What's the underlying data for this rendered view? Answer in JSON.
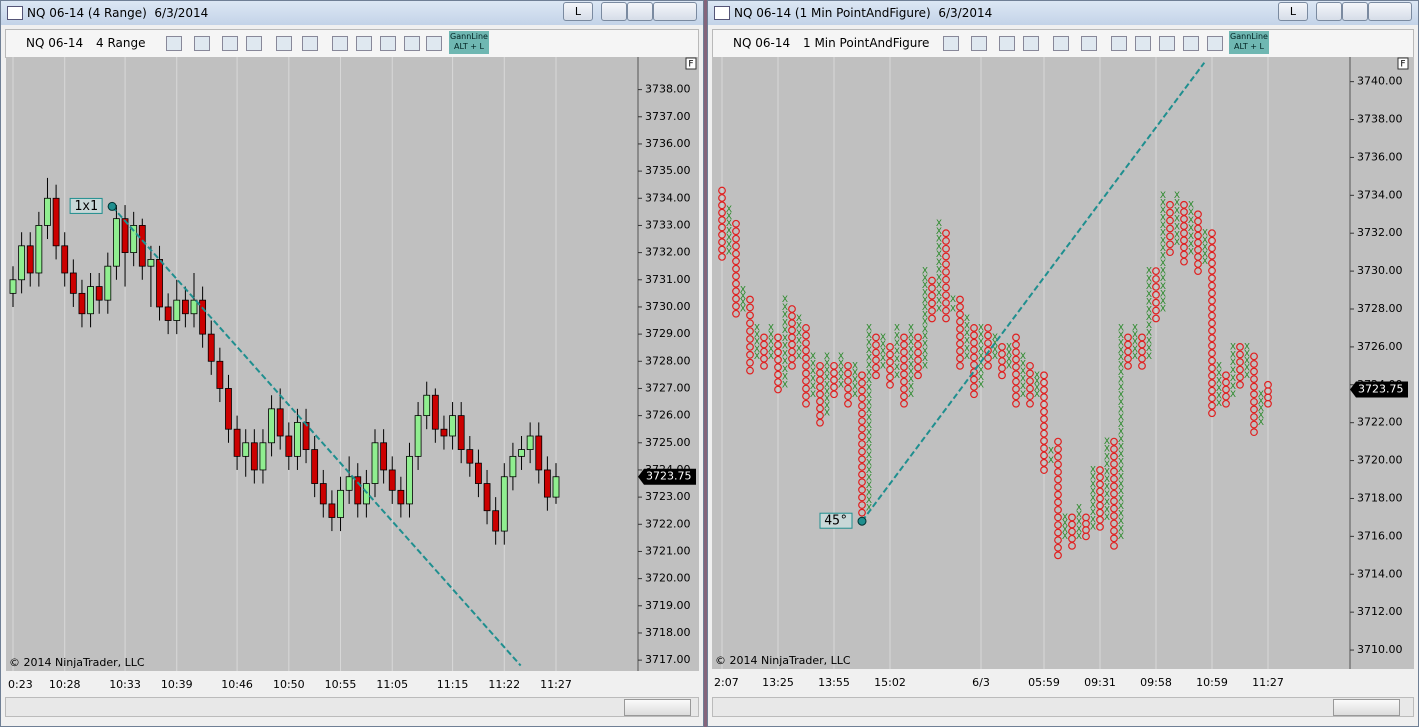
{
  "windows": [
    {
      "title": "NQ 06-14 (4 Range)  6/3/2014",
      "button": "L",
      "instrument": "NQ 06-14",
      "period": "4 Range",
      "gann_button": [
        "GannLine",
        "ALT + L"
      ],
      "axis_flag": "F",
      "copyright": "© 2014 NinjaTrader, LLC"
    },
    {
      "title": "NQ 06-14 (1 Min PointAndFigure)  6/3/2014",
      "button": "L",
      "instrument": "NQ 06-14",
      "period": "1 Min PointAndFigure",
      "gann_button": [
        "GannLine",
        "ALT + L"
      ],
      "axis_flag": "F",
      "copyright": "© 2014 NinjaTrader, LLC"
    }
  ],
  "chart_data": [
    {
      "type": "candlestick",
      "up_color": "#90ee90",
      "down_color": "#cc0000",
      "grid": true,
      "categories": [
        "0:23",
        null,
        null,
        null,
        null,
        null,
        "10:28",
        null,
        null,
        null,
        null,
        null,
        null,
        "10:33",
        null,
        null,
        null,
        null,
        null,
        "10:39",
        null,
        null,
        null,
        null,
        null,
        null,
        "10:46",
        null,
        null,
        null,
        null,
        null,
        "10:50",
        null,
        null,
        null,
        null,
        null,
        "10:55",
        null,
        null,
        null,
        null,
        null,
        "11:05",
        null,
        null,
        null,
        null,
        null,
        null,
        "11:15",
        null,
        null,
        null,
        null,
        null,
        "11:22",
        null,
        null,
        null,
        null,
        null,
        "11:27"
      ],
      "open": [
        3730.5,
        3731.0,
        3732.25,
        3731.25,
        3733.0,
        3734.0,
        3732.25,
        3731.25,
        3730.5,
        3729.75,
        3730.75,
        3730.25,
        3731.5,
        3733.25,
        3732.0,
        3733.0,
        3731.5,
        3731.75,
        3730.0,
        3729.5,
        3730.25,
        3729.75,
        3730.25,
        3729.0,
        3728.0,
        3727.0,
        3725.5,
        3724.5,
        3725.0,
        3724.0,
        3725.0,
        3726.25,
        3725.25,
        3724.5,
        3725.75,
        3724.75,
        3723.5,
        3722.75,
        3722.25,
        3723.25,
        3723.75,
        3722.75,
        3723.5,
        3725.0,
        3724.0,
        3723.25,
        3722.75,
        3724.5,
        3726.0,
        3726.75,
        3725.5,
        3725.25,
        3726.0,
        3724.75,
        3724.25,
        3723.5,
        3722.5,
        3721.75,
        3723.75,
        3724.5,
        3724.75,
        3725.25,
        3724.0,
        3723.0
      ],
      "high": [
        3731.5,
        3732.75,
        3732.75,
        3733.5,
        3734.75,
        3734.5,
        3732.75,
        3731.75,
        3731.0,
        3731.25,
        3731.25,
        3732.0,
        3733.75,
        3733.75,
        3733.5,
        3733.25,
        3732.25,
        3732.25,
        3730.5,
        3731.0,
        3730.75,
        3731.25,
        3730.75,
        3729.5,
        3728.5,
        3727.5,
        3726.0,
        3725.5,
        3725.5,
        3725.5,
        3726.75,
        3727.0,
        3725.75,
        3726.25,
        3726.25,
        3725.25,
        3724.0,
        3723.25,
        3723.75,
        3724.5,
        3724.25,
        3724.0,
        3725.5,
        3725.5,
        3724.5,
        3723.75,
        3725.0,
        3726.5,
        3727.25,
        3727.0,
        3726.0,
        3726.5,
        3726.5,
        3725.25,
        3724.75,
        3724.0,
        3723.0,
        3724.25,
        3725.0,
        3725.25,
        3725.75,
        3725.75,
        3724.5,
        3724.25
      ],
      "low": [
        3730.0,
        3730.5,
        3730.75,
        3730.75,
        3732.5,
        3731.75,
        3730.75,
        3730.0,
        3729.25,
        3729.25,
        3729.75,
        3729.75,
        3731.0,
        3730.75,
        3731.5,
        3731.0,
        3730.0,
        3729.5,
        3729.0,
        3729.0,
        3729.25,
        3729.25,
        3728.5,
        3727.5,
        3726.5,
        3725.0,
        3724.0,
        3723.75,
        3723.5,
        3723.5,
        3724.5,
        3724.75,
        3724.0,
        3724.0,
        3724.25,
        3723.0,
        3722.25,
        3721.75,
        3721.75,
        3722.75,
        3722.25,
        3722.25,
        3723.0,
        3723.5,
        3722.75,
        3722.25,
        3722.25,
        3724.0,
        3725.5,
        3725.0,
        3724.75,
        3724.75,
        3724.25,
        3723.75,
        3723.0,
        3722.0,
        3721.25,
        3721.25,
        3723.25,
        3724.0,
        3724.25,
        3723.5,
        3722.5,
        3722.75
      ],
      "close": [
        3731.0,
        3732.25,
        3731.25,
        3733.0,
        3734.0,
        3732.25,
        3731.25,
        3730.5,
        3729.75,
        3730.75,
        3730.25,
        3731.5,
        3733.25,
        3732.0,
        3733.0,
        3731.5,
        3731.75,
        3730.0,
        3729.5,
        3730.25,
        3729.75,
        3730.25,
        3729.0,
        3728.0,
        3727.0,
        3725.5,
        3724.5,
        3725.0,
        3724.0,
        3725.0,
        3726.25,
        3725.25,
        3724.5,
        3725.75,
        3724.75,
        3723.5,
        3722.75,
        3722.25,
        3723.25,
        3723.75,
        3722.75,
        3723.5,
        3725.0,
        3724.0,
        3723.25,
        3722.75,
        3724.5,
        3726.0,
        3726.75,
        3725.5,
        3725.25,
        3726.0,
        3724.75,
        3724.25,
        3723.5,
        3722.5,
        3721.75,
        3723.75,
        3724.5,
        3724.75,
        3725.25,
        3724.0,
        3723.0,
        3723.75
      ],
      "ylim": [
        3716.6,
        3739.2
      ],
      "yticks": [
        {
          "value": 3717,
          "label": "3717.00"
        },
        {
          "value": 3718,
          "label": "3718.00"
        },
        {
          "value": 3719,
          "label": "3719.00"
        },
        {
          "value": 3720,
          "label": "3720.00"
        },
        {
          "value": 3721,
          "label": "3721.00"
        },
        {
          "value": 3722,
          "label": "3722.00"
        },
        {
          "value": 3723,
          "label": "3723.00"
        },
        {
          "value": 3724,
          "label": "3724.00"
        },
        {
          "value": 3725,
          "label": "3725.00"
        },
        {
          "value": 3726,
          "label": "3726.00"
        },
        {
          "value": 3727,
          "label": "3727.00"
        },
        {
          "value": 3728,
          "label": "3728.00"
        },
        {
          "value": 3729,
          "label": "3729.00"
        },
        {
          "value": 3730,
          "label": "3730.00"
        },
        {
          "value": 3731,
          "label": "3731.00"
        },
        {
          "value": 3732,
          "label": "3732.00"
        },
        {
          "value": 3733,
          "label": "3733.00"
        },
        {
          "value": 3734,
          "label": "3734.00"
        },
        {
          "value": 3735,
          "label": "3735.00"
        },
        {
          "value": 3736,
          "label": "3736.00"
        },
        {
          "value": 3737,
          "label": "3737.00"
        },
        {
          "value": 3738,
          "label": "3738.00"
        }
      ],
      "last_price": 3723.75,
      "line": {
        "label": "1x1",
        "x": [
          11.5,
          58.9
        ],
        "y": [
          3733.7,
          3716.8
        ],
        "color": "#1f8f8f"
      }
    },
    {
      "type": "pointfigure",
      "x_color": "#2a8a2a",
      "o_color": "#e02020",
      "grid": true,
      "categories": [
        "2:07",
        null,
        null,
        null,
        null,
        null,
        null,
        null,
        "13:25",
        null,
        null,
        null,
        null,
        null,
        null,
        null,
        "13:55",
        null,
        null,
        null,
        null,
        null,
        null,
        null,
        "15:02",
        null,
        null,
        null,
        null,
        null,
        null,
        null,
        null,
        null,
        null,
        null,
        null,
        "6/3",
        null,
        null,
        null,
        null,
        null,
        null,
        null,
        null,
        "05:59",
        null,
        null,
        null,
        null,
        null,
        null,
        null,
        "09:31",
        null,
        null,
        null,
        null,
        null,
        null,
        null,
        "09:58",
        null,
        null,
        null,
        null,
        null,
        null,
        null,
        "10:59",
        null,
        null,
        null,
        null,
        null,
        null,
        null,
        "11:27"
      ],
      "columns": [
        {
          "kind": "O",
          "high": 3734.25,
          "low": 3730.75
        },
        {
          "kind": "X",
          "high": 3733.25,
          "low": 3731.0
        },
        {
          "kind": "O",
          "high": 3732.5,
          "low": 3727.75
        },
        {
          "kind": "X",
          "high": 3729.0,
          "low": 3728.0
        },
        {
          "kind": "O",
          "high": 3728.5,
          "low": 3724.75
        },
        {
          "kind": "X",
          "high": 3727.0,
          "low": 3725.5
        },
        {
          "kind": "O",
          "high": 3726.5,
          "low": 3725.0
        },
        {
          "kind": "X",
          "high": 3727.0,
          "low": 3725.5
        },
        {
          "kind": "O",
          "high": 3726.5,
          "low": 3723.75
        },
        {
          "kind": "X",
          "high": 3728.5,
          "low": 3724.0
        },
        {
          "kind": "O",
          "high": 3728.0,
          "low": 3725.0
        },
        {
          "kind": "X",
          "high": 3727.5,
          "low": 3725.5
        },
        {
          "kind": "O",
          "high": 3727.0,
          "low": 3723.0
        },
        {
          "kind": "X",
          "high": 3725.5,
          "low": 3723.5
        },
        {
          "kind": "O",
          "high": 3725.0,
          "low": 3722.0
        },
        {
          "kind": "X",
          "high": 3725.5,
          "low": 3722.5
        },
        {
          "kind": "O",
          "high": 3725.0,
          "low": 3723.5
        },
        {
          "kind": "X",
          "high": 3725.5,
          "low": 3724.0
        },
        {
          "kind": "O",
          "high": 3725.0,
          "low": 3723.0
        },
        {
          "kind": "X",
          "high": 3725.0,
          "low": 3723.5
        },
        {
          "kind": "O",
          "high": 3724.5,
          "low": 3717.25
        },
        {
          "kind": "X",
          "high": 3727.0,
          "low": 3717.5
        },
        {
          "kind": "O",
          "high": 3726.5,
          "low": 3724.5
        },
        {
          "kind": "X",
          "high": 3726.5,
          "low": 3725.0
        },
        {
          "kind": "O",
          "high": 3726.0,
          "low": 3724.0
        },
        {
          "kind": "X",
          "high": 3727.0,
          "low": 3724.5
        },
        {
          "kind": "O",
          "high": 3726.5,
          "low": 3723.0
        },
        {
          "kind": "X",
          "high": 3727.0,
          "low": 3723.5
        },
        {
          "kind": "O",
          "high": 3726.5,
          "low": 3724.5
        },
        {
          "kind": "X",
          "high": 3730.0,
          "low": 3725.0
        },
        {
          "kind": "O",
          "high": 3729.5,
          "low": 3727.5
        },
        {
          "kind": "X",
          "high": 3732.5,
          "low": 3728.0
        },
        {
          "kind": "O",
          "high": 3732.0,
          "low": 3727.5
        },
        {
          "kind": "X",
          "high": 3728.5,
          "low": 3728.0
        },
        {
          "kind": "O",
          "high": 3728.5,
          "low": 3725.0
        },
        {
          "kind": "X",
          "high": 3727.5,
          "low": 3725.5
        },
        {
          "kind": "O",
          "high": 3727.0,
          "low": 3723.5
        },
        {
          "kind": "X",
          "high": 3727.0,
          "low": 3724.0
        },
        {
          "kind": "O",
          "high": 3727.0,
          "low": 3725.0
        },
        {
          "kind": "X",
          "high": 3726.5,
          "low": 3725.5
        },
        {
          "kind": "O",
          "high": 3726.0,
          "low": 3724.5
        },
        {
          "kind": "X",
          "high": 3726.0,
          "low": 3725.0
        },
        {
          "kind": "O",
          "high": 3726.5,
          "low": 3723.0
        },
        {
          "kind": "X",
          "high": 3725.5,
          "low": 3723.5
        },
        {
          "kind": "O",
          "high": 3725.0,
          "low": 3723.0
        },
        {
          "kind": "X",
          "high": 3724.5,
          "low": 3723.5
        },
        {
          "kind": "O",
          "high": 3724.5,
          "low": 3719.5
        },
        {
          "kind": "X",
          "high": 3720.5,
          "low": 3720.0
        },
        {
          "kind": "O",
          "high": 3721.0,
          "low": 3715.0
        },
        {
          "kind": "X",
          "high": 3717.0,
          "low": 3716.0
        },
        {
          "kind": "O",
          "high": 3717.0,
          "low": 3715.5
        },
        {
          "kind": "X",
          "high": 3717.5,
          "low": 3716.0
        },
        {
          "kind": "O",
          "high": 3717.0,
          "low": 3716.0
        },
        {
          "kind": "X",
          "high": 3719.5,
          "low": 3716.5
        },
        {
          "kind": "O",
          "high": 3719.5,
          "low": 3716.5
        },
        {
          "kind": "X",
          "high": 3721.0,
          "low": 3717.0
        },
        {
          "kind": "O",
          "high": 3721.0,
          "low": 3715.5
        },
        {
          "kind": "X",
          "high": 3727.0,
          "low": 3716.0
        },
        {
          "kind": "O",
          "high": 3726.5,
          "low": 3725.0
        },
        {
          "kind": "X",
          "high": 3727.0,
          "low": 3725.5
        },
        {
          "kind": "O",
          "high": 3726.5,
          "low": 3725.0
        },
        {
          "kind": "X",
          "high": 3730.0,
          "low": 3725.5
        },
        {
          "kind": "O",
          "high": 3730.0,
          "low": 3727.5
        },
        {
          "kind": "X",
          "high": 3734.0,
          "low": 3728.0
        },
        {
          "kind": "O",
          "high": 3733.5,
          "low": 3731.0
        },
        {
          "kind": "X",
          "high": 3734.0,
          "low": 3731.5
        },
        {
          "kind": "O",
          "high": 3733.5,
          "low": 3730.5
        },
        {
          "kind": "X",
          "high": 3733.5,
          "low": 3731.0
        },
        {
          "kind": "O",
          "high": 3733.0,
          "low": 3730.0
        },
        {
          "kind": "X",
          "high": 3732.0,
          "low": 3730.5
        },
        {
          "kind": "O",
          "high": 3732.0,
          "low": 3722.5
        },
        {
          "kind": "X",
          "high": 3725.0,
          "low": 3723.0
        },
        {
          "kind": "O",
          "high": 3724.5,
          "low": 3723.0
        },
        {
          "kind": "X",
          "high": 3726.0,
          "low": 3723.5
        },
        {
          "kind": "O",
          "high": 3726.0,
          "low": 3724.0
        },
        {
          "kind": "X",
          "high": 3726.0,
          "low": 3724.5
        },
        {
          "kind": "O",
          "high": 3725.5,
          "low": 3721.5
        },
        {
          "kind": "X",
          "high": 3723.5,
          "low": 3722.0
        },
        {
          "kind": "O",
          "high": 3724.0,
          "low": 3723.0
        }
      ],
      "ylim": [
        3709.0,
        3741.3
      ],
      "yticks": [
        {
          "value": 3710,
          "label": "3710.00"
        },
        {
          "value": 3712,
          "label": "3712.00"
        },
        {
          "value": 3714,
          "label": "3714.00"
        },
        {
          "value": 3716,
          "label": "3716.00"
        },
        {
          "value": 3718,
          "label": "3718.00"
        },
        {
          "value": 3720,
          "label": "3720.00"
        },
        {
          "value": 3722,
          "label": "3722.00"
        },
        {
          "value": 3724,
          "label": "3724.00"
        },
        {
          "value": 3726,
          "label": "3726.00"
        },
        {
          "value": 3728,
          "label": "3728.00"
        },
        {
          "value": 3730,
          "label": "3730.00"
        },
        {
          "value": 3732,
          "label": "3732.00"
        },
        {
          "value": 3734,
          "label": "3734.00"
        },
        {
          "value": 3736,
          "label": "3736.00"
        },
        {
          "value": 3738,
          "label": "3738.00"
        },
        {
          "value": 3740,
          "label": "3740.00"
        }
      ],
      "last_price": 3723.75,
      "line": {
        "label": "45°",
        "x": [
          20,
          68.9
        ],
        "y": [
          3716.8,
          3741.0
        ],
        "color": "#1f8f8f"
      }
    }
  ]
}
